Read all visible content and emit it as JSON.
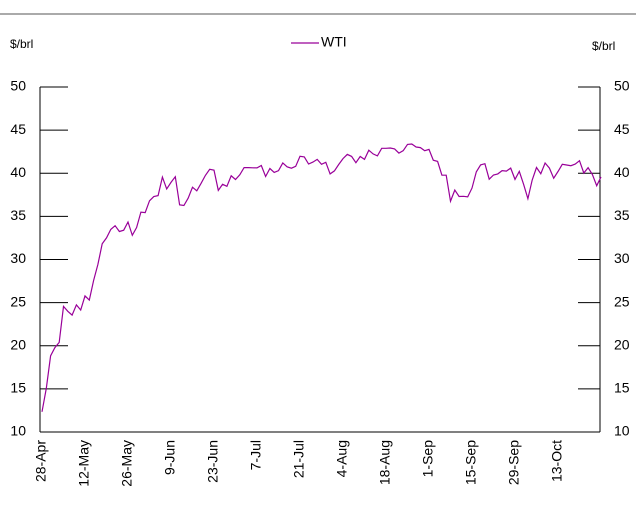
{
  "chart_data": {
    "type": "line",
    "y_label": "$/brl",
    "y2_label": "$/brl",
    "categories": [
      "28-Apr",
      null,
      null,
      null,
      null,
      null,
      null,
      null,
      null,
      null,
      "12-May",
      null,
      null,
      null,
      null,
      null,
      null,
      null,
      null,
      null,
      "26-May",
      null,
      null,
      null,
      null,
      null,
      null,
      null,
      null,
      null,
      "9-Jun",
      null,
      null,
      null,
      null,
      null,
      null,
      null,
      null,
      null,
      "23-Jun",
      null,
      null,
      null,
      null,
      null,
      null,
      null,
      null,
      null,
      "7-Jul",
      null,
      null,
      null,
      null,
      null,
      null,
      null,
      null,
      null,
      "21-Jul",
      null,
      null,
      null,
      null,
      null,
      null,
      null,
      null,
      null,
      "4-Aug",
      null,
      null,
      null,
      null,
      null,
      null,
      null,
      null,
      null,
      "18-Aug",
      null,
      null,
      null,
      null,
      null,
      null,
      null,
      null,
      null,
      "1-Sep",
      null,
      null,
      null,
      null,
      null,
      null,
      null,
      null,
      null,
      "15-Sep",
      null,
      null,
      null,
      null,
      null,
      null,
      null,
      null,
      null,
      "29-Sep",
      null,
      null,
      null,
      null,
      null,
      null,
      null,
      null,
      null,
      "13-Oct",
      null,
      null,
      null,
      null,
      null,
      null,
      null,
      null,
      null,
      null
    ],
    "series": [
      {
        "name": "WTI",
        "color": "#990099",
        "values": [
          12.34,
          15.06,
          18.84,
          19.78,
          20.39,
          24.56,
          23.99,
          23.55,
          24.74,
          24.14,
          25.78,
          25.29,
          27.56,
          29.43,
          31.82,
          32.5,
          33.49,
          33.92,
          33.25,
          33.4,
          34.35,
          32.81,
          33.71,
          35.49,
          35.44,
          36.81,
          37.29,
          37.41,
          39.55,
          38.19,
          38.94,
          39.6,
          36.34,
          36.26,
          37.12,
          38.38,
          37.96,
          38.84,
          39.75,
          40.46,
          40.37,
          38.01,
          38.72,
          38.49,
          39.7,
          39.27,
          39.82,
          40.65,
          40.65,
          40.63,
          40.62,
          40.9,
          39.62,
          40.55,
          40.1,
          40.29,
          41.2,
          40.75,
          40.59,
          40.81,
          41.96,
          41.9,
          41.07,
          41.29,
          41.6,
          41.04,
          41.27,
          39.92,
          40.27,
          41.01,
          41.7,
          42.19,
          41.95,
          41.22,
          41.94,
          41.61,
          42.67,
          42.24,
          42.01,
          42.89,
          42.89,
          42.93,
          42.82,
          42.34,
          42.62,
          43.35,
          43.39,
          43.04,
          42.97,
          42.61,
          42.76,
          41.51,
          41.37,
          39.77,
          39.77,
          36.76,
          38.05,
          37.3,
          37.33,
          37.26,
          38.28,
          40.16,
          40.97,
          41.11,
          39.31,
          39.8,
          39.93,
          40.31,
          40.25,
          40.6,
          39.29,
          40.22,
          38.72,
          37.05,
          39.22,
          40.67,
          39.95,
          41.19,
          40.6,
          39.43,
          40.2,
          41.04,
          40.96,
          40.88,
          41.06,
          41.46,
          40.03,
          40.64,
          39.85,
          38.56,
          39.57
        ]
      }
    ],
    "ylim": [
      10,
      50
    ],
    "yticks": [
      10,
      15,
      20,
      25,
      30,
      35,
      40,
      45,
      50
    ],
    "y2lim": [
      10,
      50
    ],
    "y2ticks": [
      10,
      15,
      20,
      25,
      30,
      35,
      40,
      45,
      50
    ],
    "legend": "top"
  }
}
